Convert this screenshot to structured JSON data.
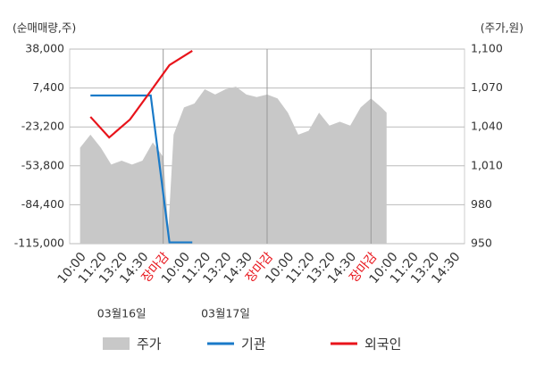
{
  "chart_data": {
    "type": "line",
    "y_axis_label": "(순매매량,주)",
    "y2_axis_label": "(주가,원)",
    "xlim": [
      -0.5,
      18.5
    ],
    "xticks": [
      {
        "value": 0,
        "label": "10:00"
      },
      {
        "value": 1,
        "label": "11:20"
      },
      {
        "value": 2,
        "label": "13:20"
      },
      {
        "value": 3,
        "label": "14:30"
      },
      {
        "value": 4,
        "label": "장마감",
        "color": "#e8141b"
      },
      {
        "value": 5,
        "label": "10:00"
      },
      {
        "value": 6,
        "label": "11:20"
      },
      {
        "value": 7,
        "label": "13:20"
      },
      {
        "value": 8,
        "label": "14:30"
      },
      {
        "value": 9,
        "label": "장마감",
        "color": "#e8141b"
      },
      {
        "value": 10,
        "label": "10:00"
      },
      {
        "value": 11,
        "label": "11:20"
      },
      {
        "value": 12,
        "label": "13:20"
      },
      {
        "value": 13,
        "label": "14:30"
      },
      {
        "value": 14,
        "label": "장마감",
        "color": "#e8141b"
      },
      {
        "value": 15,
        "label": "10:00"
      },
      {
        "value": 16,
        "label": "11:20"
      },
      {
        "value": 17,
        "label": "13:20"
      },
      {
        "value": 18,
        "label": "14:30"
      }
    ],
    "vlines": [
      4,
      9,
      14
    ],
    "dates": [
      "03월16일",
      "03월17일"
    ],
    "ylim": [
      -115000,
      38000
    ],
    "yticks": [
      {
        "value": 38000,
        "label": "38,000"
      },
      {
        "value": 7400,
        "label": "7,400"
      },
      {
        "value": -23200,
        "label": "-23,200"
      },
      {
        "value": -53800,
        "label": "-53,800"
      },
      {
        "value": -84400,
        "label": "-84,400"
      },
      {
        "value": -115000,
        "label": "-115,000"
      }
    ],
    "y2lim": [
      950,
      1100
    ],
    "y2ticks": [
      {
        "value": 1100,
        "label": "1,100"
      },
      {
        "value": 1070,
        "label": "1,070"
      },
      {
        "value": 1040,
        "label": "1,040"
      },
      {
        "value": 1010,
        "label": "1,010"
      },
      980,
      950
    ],
    "series": [
      {
        "name": "주가",
        "type": "area",
        "axis": "y2",
        "color": "#c8c8c8",
        "x": [
          0,
          0.5,
          1,
          1.5,
          2,
          2.5,
          3,
          3.5,
          4,
          4.25,
          4.5,
          5,
          5.5,
          6,
          6.5,
          7,
          7.5,
          8,
          8.5,
          9,
          9.5,
          10,
          10.5,
          11,
          11.5,
          12,
          12.5,
          13,
          13.5,
          14,
          14.5,
          14.75
        ],
        "values": [
          1024,
          1034,
          1024,
          1011,
          1014,
          1011,
          1014,
          1028,
          1017,
          962,
          1034,
          1055,
          1058,
          1069,
          1065,
          1069,
          1071,
          1065,
          1063,
          1065,
          1062,
          1051,
          1034,
          1037,
          1051,
          1041,
          1044,
          1041,
          1055,
          1062,
          1055,
          1051
        ]
      },
      {
        "name": "기관",
        "type": "line",
        "color": "#1a7ac8",
        "x": [
          0.5,
          1.4,
          2.4,
          3.4,
          4.3,
          5.4
        ],
        "values": [
          1500,
          1500,
          1500,
          1500,
          -114000,
          -114000
        ]
      },
      {
        "name": "외국인",
        "type": "line",
        "color": "#e8141b",
        "x": [
          0.5,
          1.4,
          2.4,
          3.4,
          4.3,
          5.4
        ],
        "values": [
          -15300,
          -31500,
          -17400,
          5000,
          25400,
          36600
        ]
      }
    ]
  }
}
